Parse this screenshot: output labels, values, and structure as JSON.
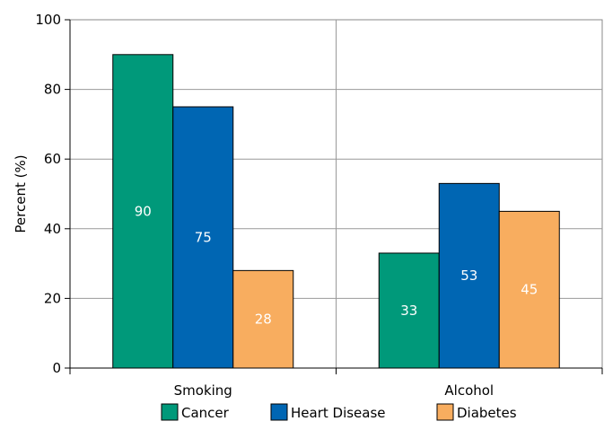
{
  "chart_data": {
    "type": "bar",
    "categories": [
      "Smoking",
      "Alcohol"
    ],
    "series": [
      {
        "name": "Cancer",
        "values": [
          90,
          33
        ],
        "color": "#00997a"
      },
      {
        "name": "Heart Disease",
        "values": [
          75,
          53
        ],
        "color": "#0066b3"
      },
      {
        "name": "Diabetes",
        "values": [
          28,
          45
        ],
        "color": "#f8ad5f"
      }
    ],
    "value_labels": [
      [
        "90",
        "33"
      ],
      [
        "75",
        "53"
      ],
      [
        "28",
        "45"
      ]
    ],
    "xlabel": "",
    "ylabel": "Percent (%)",
    "ylim": [
      0,
      100
    ],
    "yticks": [
      0,
      20,
      40,
      60,
      80,
      100
    ],
    "grid": true,
    "legend_position": "bottom"
  }
}
